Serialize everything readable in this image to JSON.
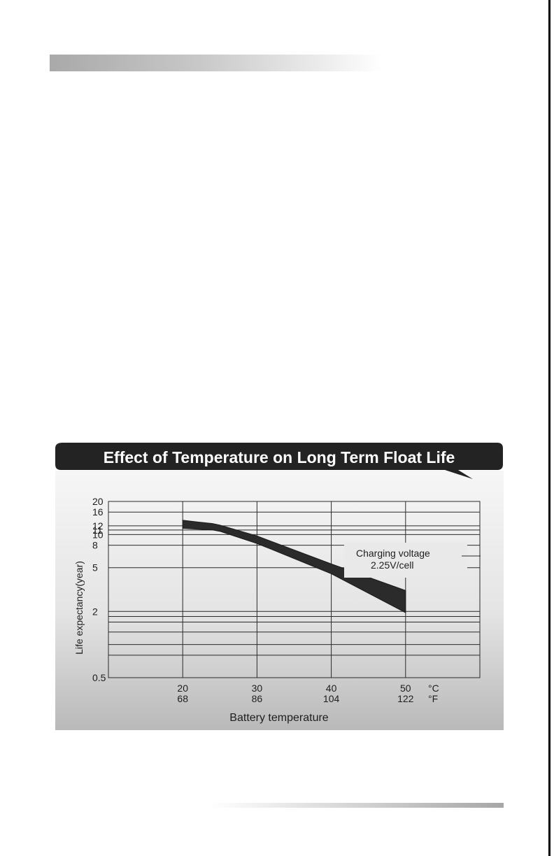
{
  "chart_data": {
    "type": "area",
    "title": "Effect of Temperature on Long Term Float Life",
    "xlabel": "Battery temperature",
    "ylabel": "Life expectancy(year)",
    "y_scale": "log",
    "ylim": [
      0.5,
      20
    ],
    "y_ticks": [
      "20",
      "16",
      "12",
      "11",
      "10",
      "8",
      "5",
      "2",
      "0.5"
    ],
    "y_tick_values": [
      20,
      16,
      12,
      11,
      10,
      8,
      5,
      2,
      0.5
    ],
    "y_extra_gridlines": [
      1.8,
      1.6,
      1.3,
      1.0,
      0.8
    ],
    "xlim": [
      10,
      60
    ],
    "x_ticks_celsius": [
      "20",
      "30",
      "40",
      "50"
    ],
    "x_ticks_fahrenheit": [
      "68",
      "86",
      "104",
      "122"
    ],
    "x_tick_values": [
      20,
      30,
      40,
      50
    ],
    "x_unit_celsius": "°C",
    "x_unit_fahrenheit": "°F",
    "grid": true,
    "band": {
      "x": [
        20,
        22,
        24,
        25,
        30,
        40,
        50
      ],
      "upper": [
        13.5,
        13.0,
        12.6,
        12.2,
        9.7,
        5.4,
        3.1
      ],
      "lower": [
        11.4,
        11.2,
        11.0,
        10.7,
        8.3,
        4.4,
        1.95
      ]
    },
    "annotation": {
      "line1": "Charging voltage",
      "line2": "2.25V/cell"
    }
  }
}
